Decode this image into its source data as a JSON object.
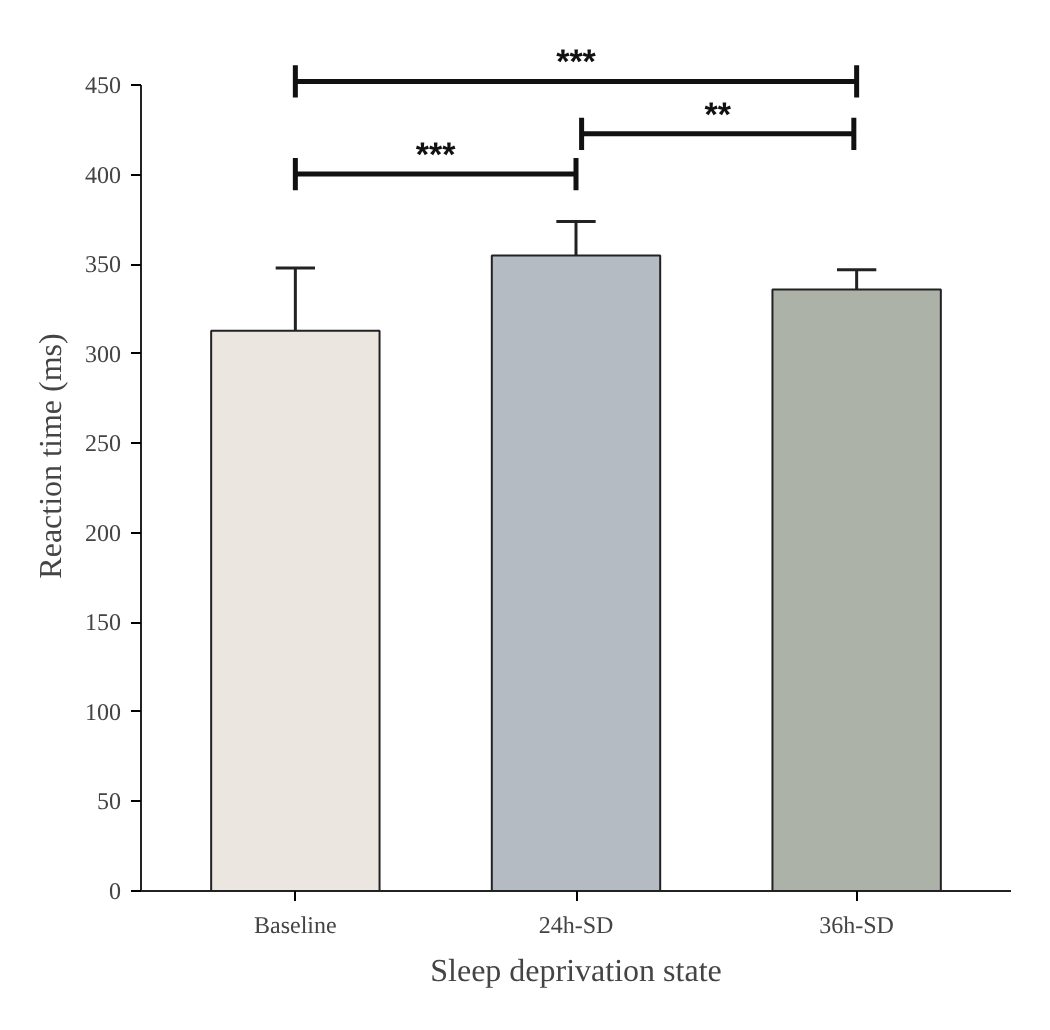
{
  "chart_data": {
    "type": "bar",
    "xlabel": "Sleep deprivation state",
    "ylabel": "Reaction time (ms)",
    "categories": [
      "Baseline",
      "24h-SD",
      "36h-SD"
    ],
    "values": [
      313,
      355,
      336
    ],
    "colors": [
      "#ebe6e0",
      "#b4bbc3",
      "#adb2a8"
    ],
    "errors": [
      [
        313,
        348
      ],
      [
        355,
        374
      ],
      [
        336,
        347
      ]
    ],
    "ylim": [
      0,
      450
    ],
    "yticks": [
      0,
      50,
      100,
      150,
      200,
      250,
      300,
      350,
      400,
      450
    ],
    "grid": false,
    "annotations": [
      "***",
      "**",
      "***"
    ]
  }
}
